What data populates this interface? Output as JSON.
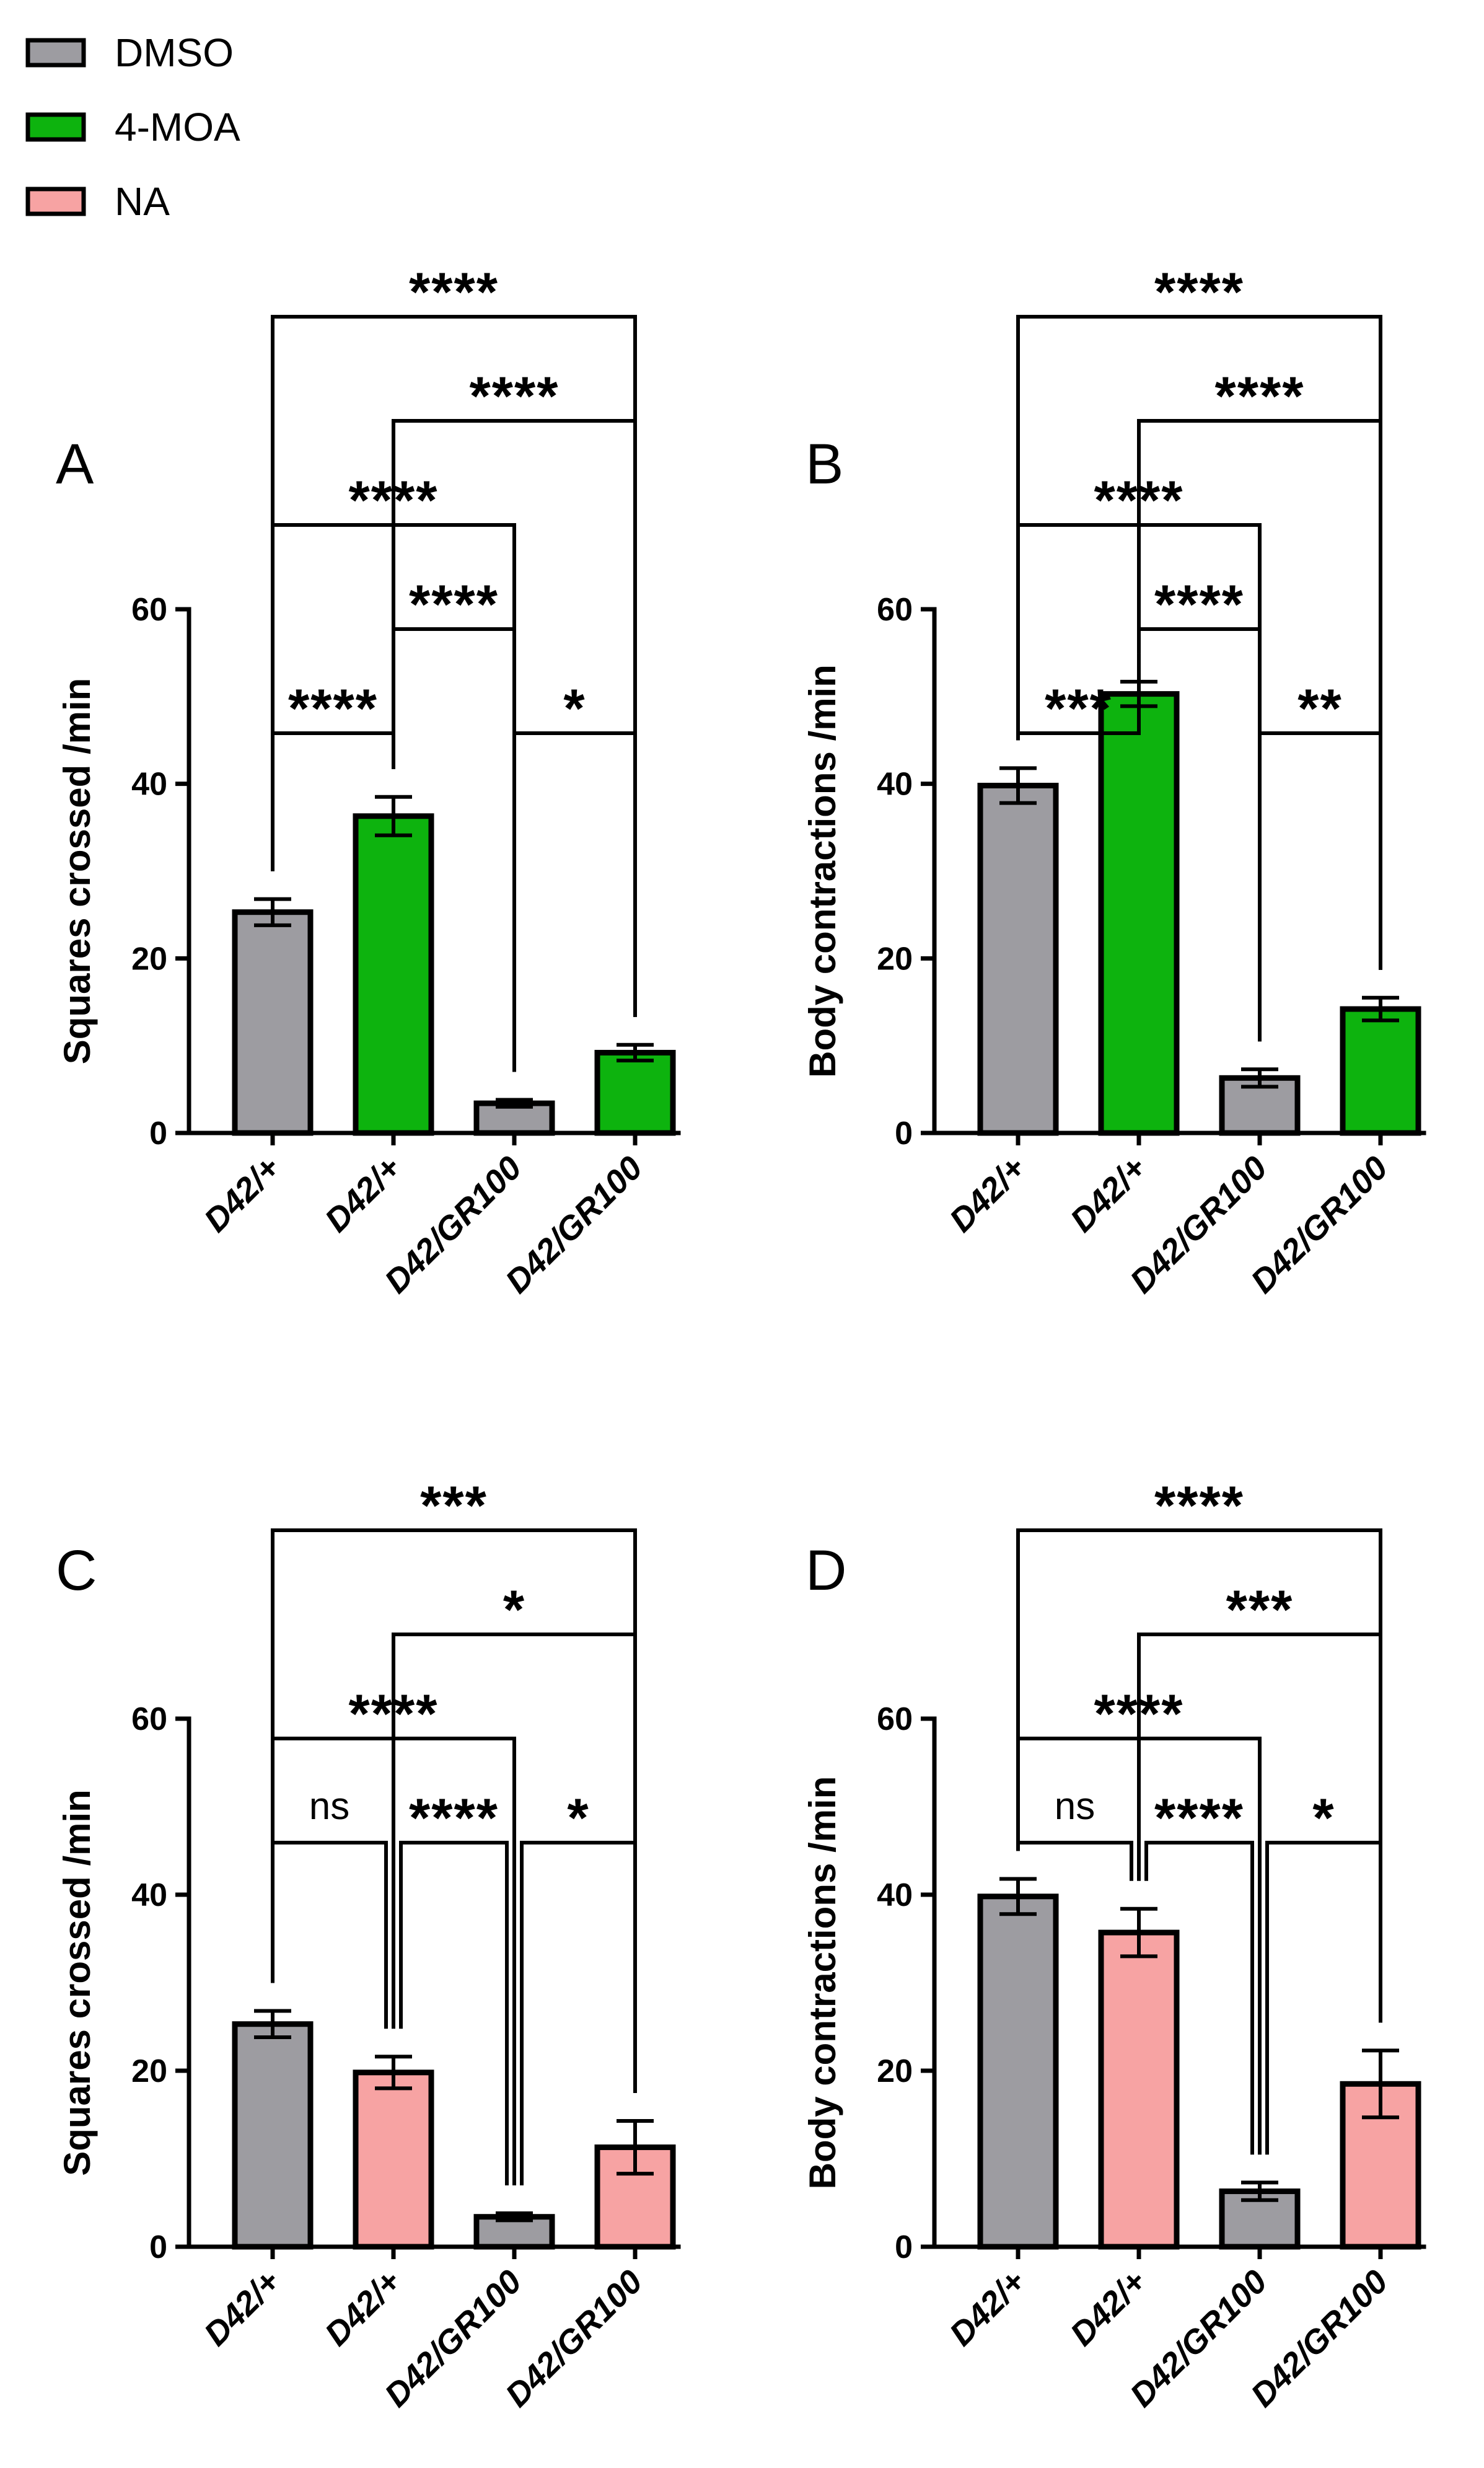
{
  "legend": [
    {
      "label": "DMSO",
      "color": "#9d9ca1"
    },
    {
      "label": "4-MOA",
      "color": "#0db30e"
    },
    {
      "label": "NA",
      "color": "#f7a3a3"
    }
  ],
  "chart_data": [
    {
      "panel": "A",
      "type": "bar",
      "ylabel": "Squares crossed /min",
      "ylim": [
        0,
        60
      ],
      "yticks": [
        0,
        20,
        40,
        60
      ],
      "categories": [
        "D42/+",
        "D42/+",
        "D42/GR100",
        "D42/GR100"
      ],
      "treatments": [
        "DMSO",
        "4-MOA",
        "DMSO",
        "4-MOA"
      ],
      "values": [
        25.3,
        36.3,
        3.4,
        9.2
      ],
      "errors": [
        1.5,
        2.2,
        0.4,
        0.9
      ],
      "comparisons": [
        {
          "from": 0,
          "to": 1,
          "label": "****"
        },
        {
          "from": 2,
          "to": 3,
          "label": "*"
        },
        {
          "from": 1,
          "to": 2,
          "label": "****"
        },
        {
          "from": 0,
          "to": 2,
          "label": "****"
        },
        {
          "from": 1,
          "to": 3,
          "label": "****"
        },
        {
          "from": 0,
          "to": 3,
          "label": "****"
        }
      ]
    },
    {
      "panel": "B",
      "type": "bar",
      "ylabel": "Body contractions /min",
      "ylim": [
        0,
        60
      ],
      "yticks": [
        0,
        20,
        40,
        60
      ],
      "categories": [
        "D42/+",
        "D42/+",
        "D42/GR100",
        "D42/GR100"
      ],
      "treatments": [
        "DMSO",
        "4-MOA",
        "DMSO",
        "4-MOA"
      ],
      "values": [
        39.8,
        50.3,
        6.3,
        14.2
      ],
      "errors": [
        2.0,
        1.4,
        1.0,
        1.3
      ],
      "comparisons": [
        {
          "from": 0,
          "to": 1,
          "label": "***"
        },
        {
          "from": 2,
          "to": 3,
          "label": "**"
        },
        {
          "from": 1,
          "to": 2,
          "label": "****"
        },
        {
          "from": 0,
          "to": 2,
          "label": "****"
        },
        {
          "from": 1,
          "to": 3,
          "label": "****"
        },
        {
          "from": 0,
          "to": 3,
          "label": "****"
        }
      ]
    },
    {
      "panel": "C",
      "type": "bar",
      "ylabel": "Squares crossed /min",
      "ylim": [
        0,
        60
      ],
      "yticks": [
        0,
        20,
        40,
        60
      ],
      "categories": [
        "D42/+",
        "D42/+",
        "D42/GR100",
        "D42/GR100"
      ],
      "treatments": [
        "DMSO",
        "NA",
        "DMSO",
        "NA"
      ],
      "values": [
        25.3,
        19.8,
        3.4,
        11.3
      ],
      "errors": [
        1.5,
        1.8,
        0.4,
        3.0
      ],
      "comparisons": [
        {
          "from": 0,
          "to": 1,
          "label": "ns"
        },
        {
          "from": 1,
          "to": 2,
          "label": "****"
        },
        {
          "from": 2,
          "to": 3,
          "label": "*"
        },
        {
          "from": 0,
          "to": 2,
          "label": "****"
        },
        {
          "from": 1,
          "to": 3,
          "label": "*"
        },
        {
          "from": 0,
          "to": 3,
          "label": "***"
        }
      ]
    },
    {
      "panel": "D",
      "type": "bar",
      "ylabel": "Body contractions /min",
      "ylim": [
        0,
        60
      ],
      "yticks": [
        0,
        20,
        40,
        60
      ],
      "categories": [
        "D42/+",
        "D42/+",
        "D42/GR100",
        "D42/GR100"
      ],
      "treatments": [
        "DMSO",
        "NA",
        "DMSO",
        "NA"
      ],
      "values": [
        39.8,
        35.7,
        6.3,
        18.5
      ],
      "errors": [
        2.0,
        2.7,
        1.0,
        3.8
      ],
      "comparisons": [
        {
          "from": 0,
          "to": 1,
          "label": "ns"
        },
        {
          "from": 1,
          "to": 2,
          "label": "****"
        },
        {
          "from": 2,
          "to": 3,
          "label": "*"
        },
        {
          "from": 0,
          "to": 2,
          "label": "****"
        },
        {
          "from": 1,
          "to": 3,
          "label": "***"
        },
        {
          "from": 0,
          "to": 3,
          "label": "****"
        }
      ]
    }
  ]
}
